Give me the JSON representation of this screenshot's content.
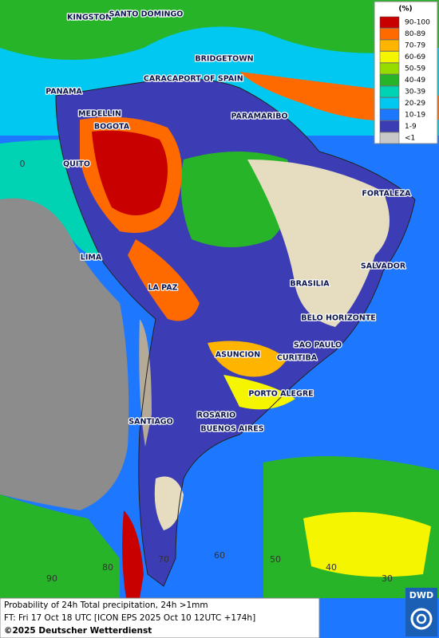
{
  "cities": [
    "KINGSTON",
    "SANTO DOMINGO",
    "BRIDGETOWN",
    "CARACAS",
    "PORT OF SPAIN",
    "PANAMA",
    "MEDELLIN",
    "BOGOTA",
    "PARAMARIBO",
    "QUITO",
    "FORTALEZA",
    "LIMA",
    "SALVADOR",
    "BRASILIA",
    "LA PAZ",
    "BELO HORIZONTE",
    "SAO PAULO",
    "ASUNCION",
    "CURITIBA",
    "PORTO ALEGRE",
    "ROSARIO",
    "SANTIAGO",
    "BUENOS AIRES"
  ],
  "graticule_labels": [
    "0",
    "90",
    "80",
    "70",
    "60",
    "50",
    "40",
    "30"
  ],
  "legend": {
    "title": "(%)",
    "entries": [
      {
        "label": "90-100",
        "color": "#c80000"
      },
      {
        "label": "80-89",
        "color": "#ff6a00"
      },
      {
        "label": "70-79",
        "color": "#ffb400"
      },
      {
        "label": "60-69",
        "color": "#f5f500"
      },
      {
        "label": "50-59",
        "color": "#96dc00"
      },
      {
        "label": "40-49",
        "color": "#28b428"
      },
      {
        "label": "30-39",
        "color": "#00d2b4"
      },
      {
        "label": "20-29",
        "color": "#00c8f0"
      },
      {
        "label": "10-19",
        "color": "#1e78ff"
      },
      {
        "label": "1-9",
        "color": "#3c3cb4"
      },
      {
        "label": "<1",
        "color": "#c8c8c8"
      }
    ]
  },
  "footer": {
    "line1": "Probability of 24h Total precipitation, 24h >1mm",
    "line2": "FT: Fri 17 Oct 18 UTC [ICON EPS 2025 Oct 10 12UTC +174h]",
    "copyright": "©2025 Deutscher Wetterdienst"
  },
  "logo": "DWD"
}
